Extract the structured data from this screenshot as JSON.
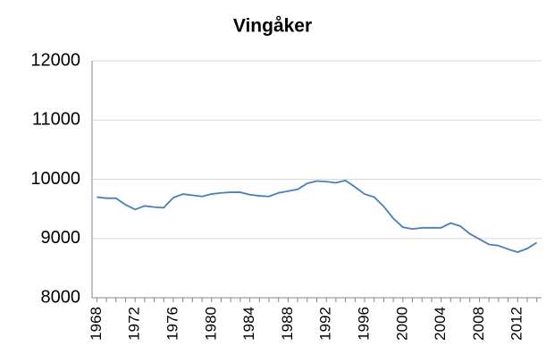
{
  "chart_data": {
    "type": "line",
    "title": "Vingåker",
    "x": [
      1968,
      1969,
      1970,
      1971,
      1972,
      1973,
      1974,
      1975,
      1976,
      1977,
      1978,
      1979,
      1980,
      1981,
      1982,
      1983,
      1984,
      1985,
      1986,
      1987,
      1988,
      1989,
      1990,
      1991,
      1992,
      1993,
      1994,
      1995,
      1996,
      1997,
      1998,
      1999,
      2000,
      2001,
      2002,
      2003,
      2004,
      2005,
      2006,
      2007,
      2008,
      2009,
      2010,
      2011,
      2012,
      2013,
      2014
    ],
    "series": [
      {
        "name": "Vingåker",
        "color": "#4a7ebb",
        "values": [
          9700,
          9680,
          9680,
          9570,
          9490,
          9550,
          9530,
          9520,
          9690,
          9750,
          9730,
          9710,
          9750,
          9770,
          9780,
          9780,
          9740,
          9720,
          9710,
          9770,
          9800,
          9830,
          9930,
          9970,
          9960,
          9940,
          9980,
          9870,
          9750,
          9700,
          9540,
          9340,
          9190,
          9160,
          9180,
          9180,
          9180,
          9260,
          9210,
          9080,
          8990,
          8900,
          8880,
          8820,
          8770,
          8830,
          8930
        ]
      }
    ],
    "xlim": [
      1967.5,
      2014.5
    ],
    "xticks": [
      1968,
      1972,
      1976,
      1980,
      1984,
      1988,
      1992,
      1996,
      2000,
      2004,
      2008,
      2012
    ],
    "ylim": [
      8000,
      12000
    ],
    "yticks": [
      8000,
      9000,
      10000,
      11000,
      12000
    ],
    "grid": true
  }
}
